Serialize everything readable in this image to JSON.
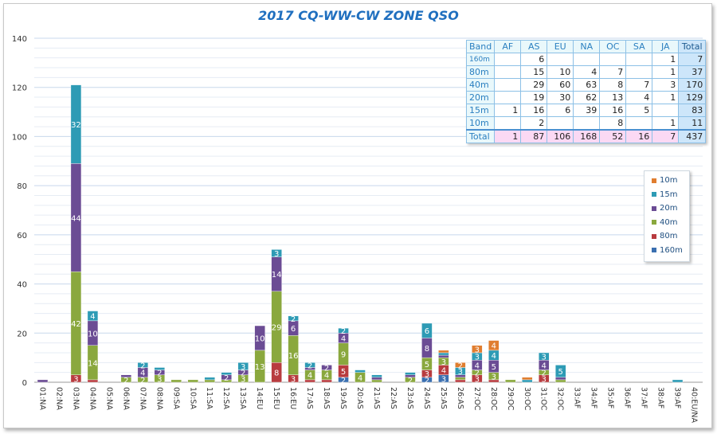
{
  "chart_data": {
    "type": "bar",
    "stacked": true,
    "title": "2017 CQ-WW-CW ZONE QSO",
    "xlabel": "",
    "ylabel": "",
    "ylim": [
      0,
      140
    ],
    "yticks": [
      "0",
      "20",
      "40",
      "60",
      "80",
      "100",
      "120",
      "140"
    ],
    "grid": true,
    "legend_position": "right",
    "categories": [
      "01:NA",
      "02:NA",
      "03:NA",
      "04:NA",
      "05:NA",
      "06:NA",
      "07:NA",
      "08:NA",
      "09:SA",
      "10:SA",
      "11:SA",
      "12:SA",
      "13:SA",
      "14:EU",
      "15:EU",
      "16:EU",
      "17:AS",
      "18:AS",
      "19:AS",
      "20:AS",
      "21:AS",
      "22:AS",
      "23:AS",
      "24:AS",
      "25:AS",
      "26:AS",
      "27:OC",
      "28:OC",
      "29:OC",
      "30:OC",
      "31:OC",
      "32:OC",
      "33:AF",
      "34:AF",
      "35:AF",
      "36:AF",
      "37:AF",
      "38:AF",
      "39:AF",
      "40:EU/NA"
    ],
    "series": [
      {
        "name": "160m",
        "color": "#3a6fb0",
        "values": [
          0,
          0,
          0,
          0,
          0,
          0,
          0,
          0,
          0,
          0,
          0,
          0,
          0,
          0,
          0,
          0,
          0,
          0,
          2,
          0,
          0,
          0,
          0,
          2,
          3,
          0,
          0,
          0,
          0,
          0,
          0,
          0,
          0,
          0,
          0,
          0,
          0,
          0,
          0,
          0
        ]
      },
      {
        "name": "80m",
        "color": "#b83b3f",
        "values": [
          0,
          0,
          3,
          1,
          0,
          0,
          0,
          0,
          0,
          0,
          0,
          0,
          0,
          0,
          8,
          3,
          1,
          1,
          5,
          0,
          0,
          0,
          0,
          3,
          4,
          1,
          3,
          1,
          0,
          0,
          3,
          0,
          0,
          0,
          0,
          0,
          0,
          0,
          0,
          0
        ]
      },
      {
        "name": "40m",
        "color": "#8aa83e",
        "values": [
          0,
          0,
          42,
          14,
          0,
          2,
          2,
          3,
          1,
          1,
          1,
          1,
          3,
          13,
          29,
          16,
          4,
          4,
          9,
          4,
          1,
          0,
          2,
          5,
          3,
          1,
          2,
          3,
          1,
          0,
          2,
          1,
          0,
          0,
          0,
          0,
          0,
          0,
          0,
          0
        ]
      },
      {
        "name": "20m",
        "color": "#6b4c94",
        "values": [
          1,
          0,
          44,
          10,
          0,
          1,
          4,
          2,
          0,
          0,
          0,
          2,
          2,
          10,
          14,
          6,
          1,
          2,
          4,
          0,
          1,
          0,
          1,
          8,
          1,
          1,
          4,
          5,
          0,
          0,
          4,
          1,
          0,
          0,
          0,
          0,
          0,
          0,
          0,
          0
        ]
      },
      {
        "name": "15m",
        "color": "#2e9bb5",
        "values": [
          0,
          0,
          32,
          4,
          0,
          0,
          2,
          1,
          0,
          0,
          1,
          1,
          3,
          0,
          3,
          2,
          2,
          0,
          2,
          1,
          1,
          0,
          1,
          6,
          1,
          3,
          3,
          4,
          0,
          1,
          3,
          5,
          0,
          0,
          0,
          0,
          0,
          0,
          1,
          0
        ]
      },
      {
        "name": "10m",
        "color": "#e07d2f",
        "values": [
          0,
          0,
          0,
          0,
          0,
          0,
          0,
          0,
          0,
          0,
          0,
          0,
          0,
          0,
          0,
          0,
          0,
          0,
          0,
          0,
          0,
          0,
          0,
          0,
          1,
          2,
          3,
          4,
          0,
          1,
          0,
          0,
          0,
          0,
          0,
          0,
          0,
          0,
          0,
          0
        ]
      }
    ]
  },
  "table": {
    "header": [
      "Band",
      "AF",
      "AS",
      "EU",
      "NA",
      "OC",
      "SA",
      "JA",
      "Total"
    ],
    "rows": [
      [
        "160m",
        "",
        "6",
        "",
        "",
        "",
        "",
        "1",
        "7"
      ],
      [
        "80m",
        "",
        "15",
        "10",
        "4",
        "7",
        "",
        "1",
        "37"
      ],
      [
        "40m",
        "",
        "29",
        "60",
        "63",
        "8",
        "7",
        "3",
        "170"
      ],
      [
        "20m",
        "",
        "19",
        "30",
        "62",
        "13",
        "4",
        "1",
        "129"
      ],
      [
        "15m",
        "1",
        "16",
        "6",
        "39",
        "16",
        "5",
        "",
        "83"
      ],
      [
        "10m",
        "",
        "2",
        "",
        "",
        "8",
        "",
        "1",
        "11"
      ],
      [
        "Total",
        "1",
        "87",
        "106",
        "168",
        "52",
        "16",
        "7",
        "437"
      ]
    ]
  },
  "legend": [
    "10m",
    "15m",
    "20m",
    "40m",
    "80m",
    "160m"
  ]
}
